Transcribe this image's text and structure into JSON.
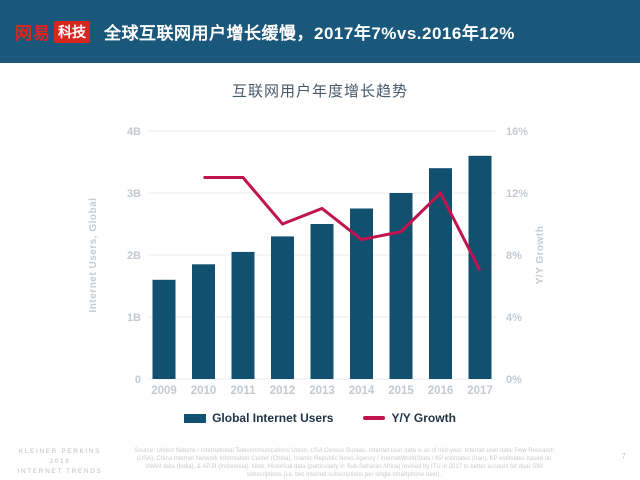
{
  "header": {
    "logo": {
      "brand": "网易",
      "suffix": "科技"
    },
    "title": "全球互联网用户增长缓慢，2017年7%vs.2016年12%",
    "bg_color": "#19577B",
    "logo_red": "#D7261D"
  },
  "chart_data": {
    "type": "bar",
    "title": "互联网用户年度增长趋势",
    "categories": [
      "2009",
      "2010",
      "2011",
      "2012",
      "2013",
      "2014",
      "2015",
      "2016",
      "2017"
    ],
    "series": [
      {
        "name": "Global Internet Users",
        "type": "bar",
        "axis": "left",
        "unit": "B",
        "color": "#125070",
        "values": [
          1.6,
          1.85,
          2.05,
          2.3,
          2.5,
          2.75,
          3.0,
          3.4,
          3.6
        ]
      },
      {
        "name": "Y/Y Growth",
        "type": "line",
        "axis": "right",
        "unit": "%",
        "color": "#C1134E",
        "values": [
          null,
          13,
          13,
          10,
          11,
          9,
          9.5,
          12,
          7
        ]
      }
    ],
    "left_axis": {
      "label": "Internet Users, Global",
      "ticks": [
        "4B",
        "3B",
        "2B",
        "1B",
        "0"
      ],
      "min": 0,
      "max": 4
    },
    "right_axis": {
      "label": "Y/Y Growth",
      "ticks": [
        "16%",
        "12%",
        "8%",
        "4%",
        "0%"
      ],
      "min": 0,
      "max": 16
    },
    "grid": true,
    "legend_position": "bottom",
    "tick_color": "#C5CAD0",
    "grid_color": "#E9EBED"
  },
  "legend": {
    "items": [
      {
        "label": "Global Internet Users",
        "color": "#125070",
        "shape": "rect"
      },
      {
        "label": "Y/Y Growth",
        "color": "#C1134E",
        "shape": "line"
      }
    ]
  },
  "footer": {
    "source": "Source: United Nations / International Telecommunications Union, USA Census Bureau. Internet user data is as of mid-year. Internet user data: Pew Research (USA), China Internet Network Information Center (China), Islamic Republic News Agency / InternetWorldStats / KP estimates (Iran), KP estimates based on IAMAI data (India), & APJII (Indonesia). Note: Historical data (particularly in Sub-Saharan Africa) revised by ITU in 2017 to better account for dual-SIM subscriptions (i.e. two Internet subscriptions per single smartphone user).",
    "brand_lines": [
      "KLEINER PERKINS",
      "2018",
      "INTERNET TRENDS"
    ],
    "page_number": "7"
  }
}
